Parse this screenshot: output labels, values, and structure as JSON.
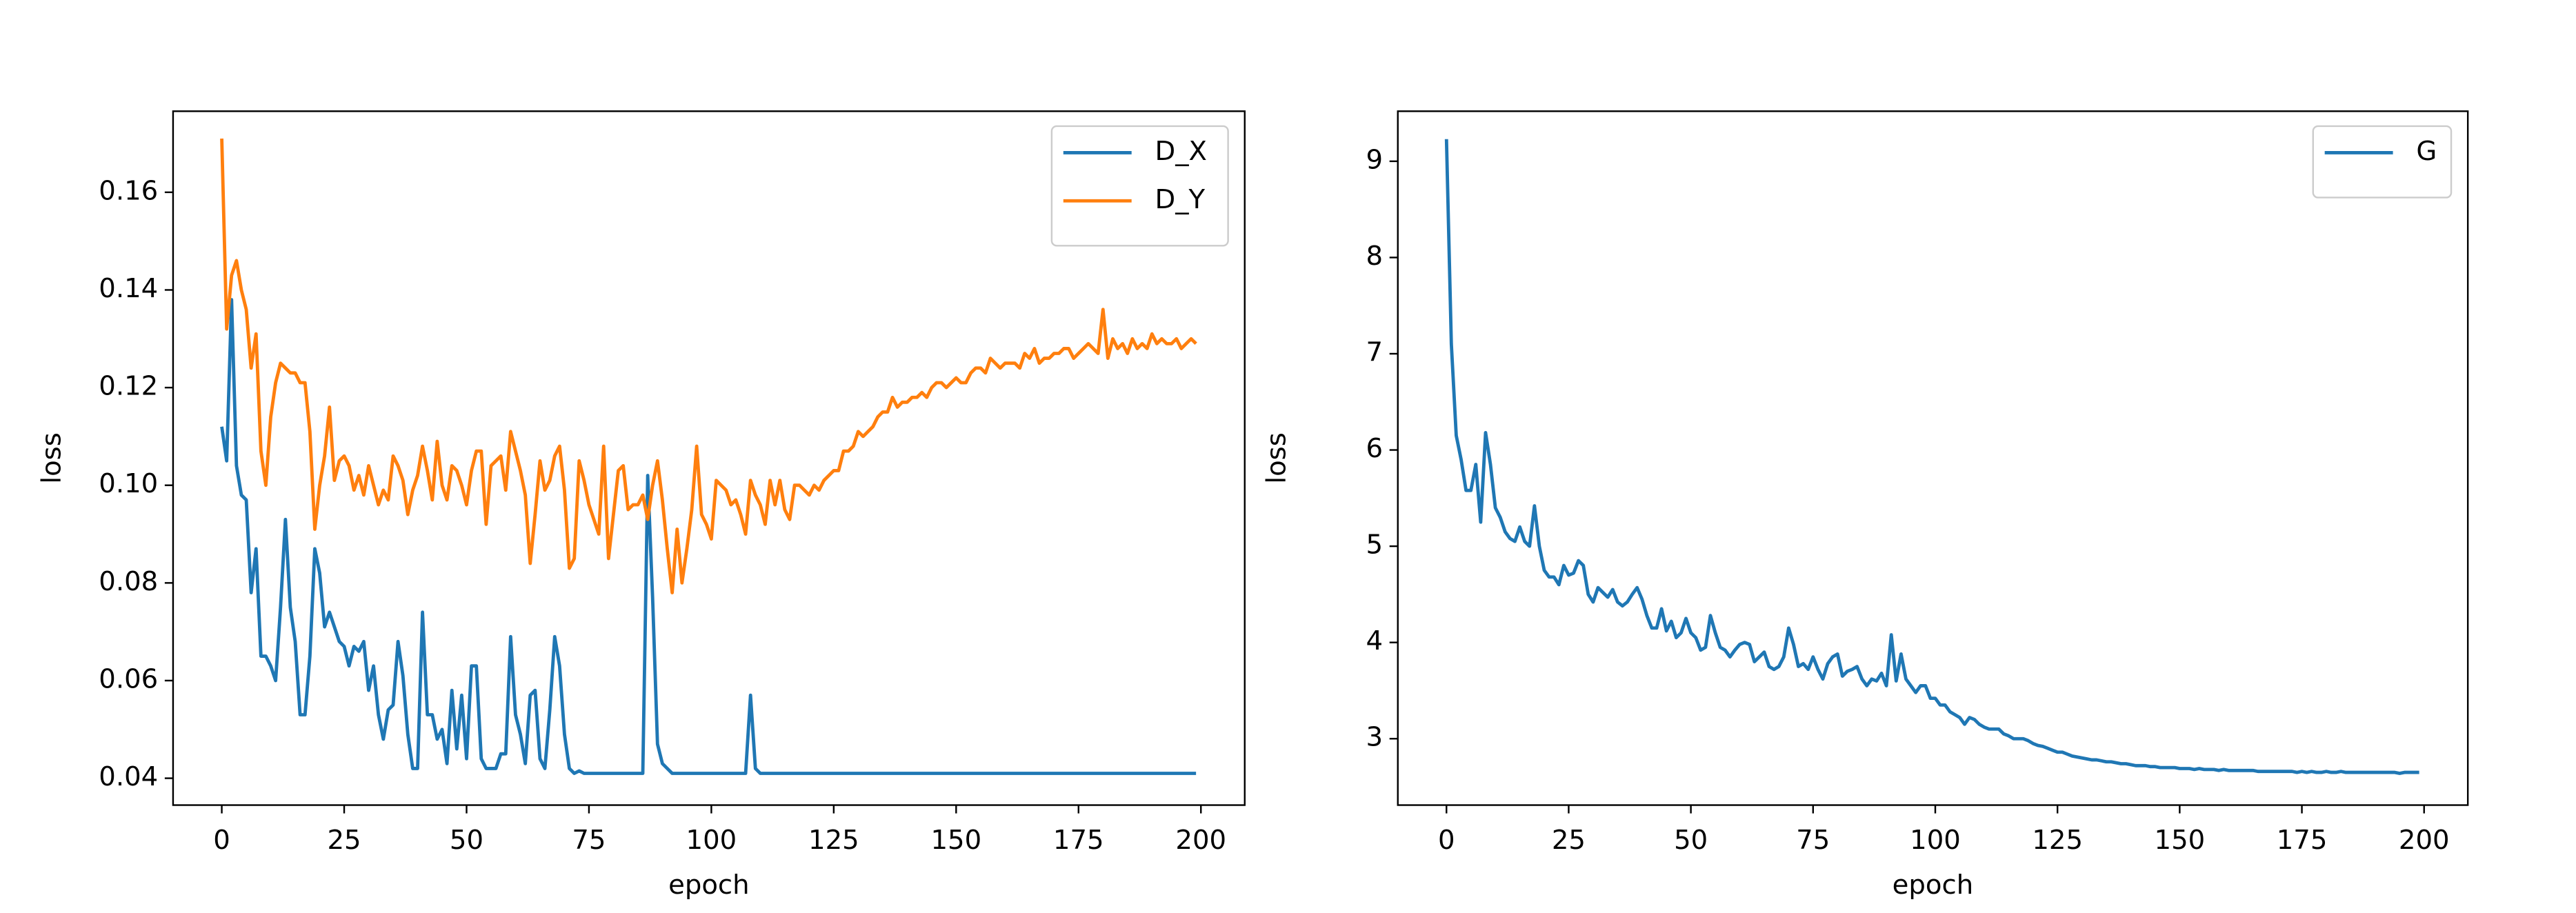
{
  "chart_data": [
    {
      "type": "line",
      "xlabel": "epoch",
      "ylabel": "loss",
      "legend": "upper right",
      "xlim": [
        -9.95,
        208.95
      ],
      "ylim": [
        0.0345,
        0.1766
      ],
      "xticks": [
        0,
        25,
        50,
        75,
        100,
        125,
        150,
        175,
        200
      ],
      "yticks": [
        0.04,
        0.06,
        0.08,
        {
          "value": 0.1,
          "label": "0.10"
        },
        0.12,
        0.14,
        0.16
      ],
      "x": [
        0,
        1,
        2,
        3,
        4,
        5,
        6,
        7,
        8,
        9,
        10,
        11,
        12,
        13,
        14,
        15,
        16,
        17,
        18,
        19,
        20,
        21,
        22,
        23,
        24,
        25,
        26,
        27,
        28,
        29,
        30,
        31,
        32,
        33,
        34,
        35,
        36,
        37,
        38,
        39,
        40,
        41,
        42,
        43,
        44,
        45,
        46,
        47,
        48,
        49,
        50,
        51,
        52,
        53,
        54,
        55,
        56,
        57,
        58,
        59,
        60,
        61,
        62,
        63,
        64,
        65,
        66,
        67,
        68,
        69,
        70,
        71,
        72,
        73,
        74,
        75,
        76,
        77,
        78,
        79,
        80,
        81,
        82,
        83,
        84,
        85,
        86,
        87,
        88,
        89,
        90,
        91,
        92,
        93,
        94,
        95,
        96,
        97,
        98,
        99,
        100,
        101,
        102,
        103,
        104,
        105,
        106,
        107,
        108,
        109,
        110,
        111,
        112,
        113,
        114,
        115,
        116,
        117,
        118,
        119,
        120,
        121,
        122,
        123,
        124,
        125,
        126,
        127,
        128,
        129,
        130,
        131,
        132,
        133,
        134,
        135,
        136,
        137,
        138,
        139,
        140,
        141,
        142,
        143,
        144,
        145,
        146,
        147,
        148,
        149,
        150,
        151,
        152,
        153,
        154,
        155,
        156,
        157,
        158,
        159,
        160,
        161,
        162,
        163,
        164,
        165,
        166,
        167,
        168,
        169,
        170,
        171,
        172,
        173,
        174,
        175,
        176,
        177,
        178,
        179,
        180,
        181,
        182,
        183,
        184,
        185,
        186,
        187,
        188,
        189,
        190,
        191,
        192,
        193,
        194,
        195,
        196,
        197,
        198,
        199
      ],
      "series": [
        {
          "name": "D_X",
          "color": "#1f77b4",
          "values": [
            0.112,
            0.105,
            0.138,
            0.104,
            0.098,
            0.097,
            0.078,
            0.087,
            0.065,
            0.065,
            0.063,
            0.06,
            0.075,
            0.093,
            0.075,
            0.068,
            0.053,
            0.053,
            0.065,
            0.087,
            0.082,
            0.071,
            0.074,
            0.071,
            0.068,
            0.067,
            0.063,
            0.067,
            0.066,
            0.068,
            0.058,
            0.063,
            0.053,
            0.048,
            0.054,
            0.055,
            0.068,
            0.061,
            0.049,
            0.042,
            0.042,
            0.074,
            0.053,
            0.053,
            0.048,
            0.05,
            0.043,
            0.058,
            0.046,
            0.057,
            0.044,
            0.063,
            0.063,
            0.044,
            0.042,
            0.042,
            0.042,
            0.045,
            0.045,
            0.069,
            0.053,
            0.049,
            0.043,
            0.057,
            0.058,
            0.044,
            0.042,
            0.054,
            0.069,
            0.063,
            0.049,
            0.042,
            0.041,
            0.0415,
            0.041,
            0.041,
            0.041,
            0.041,
            0.041,
            0.041,
            0.041,
            0.041,
            0.041,
            0.041,
            0.041,
            0.041,
            0.041,
            0.102,
            0.077,
            0.047,
            0.043,
            0.042,
            0.041,
            0.041,
            0.041,
            0.041,
            0.041,
            0.041,
            0.041,
            0.041,
            0.041,
            0.041,
            0.041,
            0.041,
            0.041,
            0.041,
            0.041,
            0.041,
            0.057,
            0.042,
            0.041,
            0.041,
            0.041,
            0.041,
            0.041,
            0.041,
            0.041,
            0.041,
            0.041,
            0.041,
            0.041,
            0.041,
            0.041,
            0.041,
            0.041,
            0.041,
            0.041,
            0.041,
            0.041,
            0.041,
            0.041,
            0.041,
            0.041,
            0.041,
            0.041,
            0.041,
            0.041,
            0.041,
            0.041,
            0.041,
            0.041,
            0.041,
            0.041,
            0.041,
            0.041,
            0.041,
            0.041,
            0.041,
            0.041,
            0.041,
            0.041,
            0.041,
            0.041,
            0.041,
            0.041,
            0.041,
            0.041,
            0.041,
            0.041,
            0.041,
            0.041,
            0.041,
            0.041,
            0.041,
            0.041,
            0.041,
            0.041,
            0.041,
            0.041,
            0.041,
            0.041,
            0.041,
            0.041,
            0.041,
            0.041,
            0.041,
            0.041,
            0.041,
            0.041,
            0.041,
            0.041,
            0.041,
            0.041,
            0.041,
            0.041,
            0.041,
            0.041,
            0.041,
            0.041,
            0.041,
            0.041,
            0.041,
            0.041,
            0.041,
            0.041,
            0.041,
            0.041,
            0.041,
            0.041,
            0.041
          ]
        },
        {
          "name": "D_Y",
          "color": "#ff7f0e",
          "values": [
            0.171,
            0.132,
            0.143,
            0.146,
            0.14,
            0.136,
            0.124,
            0.131,
            0.107,
            0.1,
            0.114,
            0.121,
            0.125,
            0.124,
            0.123,
            0.123,
            0.121,
            0.121,
            0.111,
            0.091,
            0.1,
            0.106,
            0.116,
            0.101,
            0.105,
            0.106,
            0.104,
            0.099,
            0.102,
            0.098,
            0.104,
            0.1,
            0.096,
            0.099,
            0.097,
            0.106,
            0.104,
            0.101,
            0.094,
            0.099,
            0.102,
            0.108,
            0.103,
            0.097,
            0.109,
            0.1,
            0.097,
            0.104,
            0.103,
            0.1,
            0.096,
            0.103,
            0.107,
            0.107,
            0.092,
            0.104,
            0.105,
            0.106,
            0.099,
            0.111,
            0.107,
            0.103,
            0.098,
            0.084,
            0.094,
            0.105,
            0.099,
            0.101,
            0.106,
            0.108,
            0.099,
            0.083,
            0.085,
            0.105,
            0.101,
            0.096,
            0.093,
            0.09,
            0.108,
            0.085,
            0.094,
            0.103,
            0.104,
            0.095,
            0.096,
            0.096,
            0.098,
            0.093,
            0.1,
            0.105,
            0.097,
            0.087,
            0.078,
            0.091,
            0.08,
            0.087,
            0.095,
            0.108,
            0.094,
            0.092,
            0.089,
            0.101,
            0.1,
            0.099,
            0.096,
            0.097,
            0.094,
            0.09,
            0.101,
            0.098,
            0.096,
            0.092,
            0.101,
            0.096,
            0.101,
            0.095,
            0.093,
            0.1,
            0.1,
            0.099,
            0.098,
            0.1,
            0.099,
            0.101,
            0.102,
            0.103,
            0.103,
            0.107,
            0.107,
            0.108,
            0.111,
            0.11,
            0.111,
            0.112,
            0.114,
            0.115,
            0.115,
            0.118,
            0.116,
            0.117,
            0.117,
            0.118,
            0.118,
            0.119,
            0.118,
            0.12,
            0.121,
            0.121,
            0.12,
            0.121,
            0.122,
            0.121,
            0.121,
            0.123,
            0.124,
            0.124,
            0.123,
            0.126,
            0.125,
            0.124,
            0.125,
            0.125,
            0.125,
            0.124,
            0.127,
            0.126,
            0.128,
            0.125,
            0.126,
            0.126,
            0.127,
            0.127,
            0.128,
            0.128,
            0.126,
            0.127,
            0.128,
            0.129,
            0.128,
            0.127,
            0.136,
            0.126,
            0.13,
            0.128,
            0.129,
            0.127,
            0.13,
            0.128,
            0.129,
            0.128,
            0.131,
            0.129,
            0.13,
            0.129,
            0.129,
            0.13,
            0.128,
            0.129,
            0.13,
            0.129
          ]
        }
      ]
    },
    {
      "type": "line",
      "xlabel": "epoch",
      "ylabel": "loss",
      "legend": "upper right",
      "xlim": [
        -9.95,
        208.95
      ],
      "ylim": [
        2.31,
        9.52
      ],
      "xticks": [
        0,
        25,
        50,
        75,
        100,
        125,
        150,
        175,
        200
      ],
      "yticks": [
        3,
        4,
        5,
        6,
        7,
        8,
        9
      ],
      "x": [
        0,
        1,
        2,
        3,
        4,
        5,
        6,
        7,
        8,
        9,
        10,
        11,
        12,
        13,
        14,
        15,
        16,
        17,
        18,
        19,
        20,
        21,
        22,
        23,
        24,
        25,
        26,
        27,
        28,
        29,
        30,
        31,
        32,
        33,
        34,
        35,
        36,
        37,
        38,
        39,
        40,
        41,
        42,
        43,
        44,
        45,
        46,
        47,
        48,
        49,
        50,
        51,
        52,
        53,
        54,
        55,
        56,
        57,
        58,
        59,
        60,
        61,
        62,
        63,
        64,
        65,
        66,
        67,
        68,
        69,
        70,
        71,
        72,
        73,
        74,
        75,
        76,
        77,
        78,
        79,
        80,
        81,
        82,
        83,
        84,
        85,
        86,
        87,
        88,
        89,
        90,
        91,
        92,
        93,
        94,
        95,
        96,
        97,
        98,
        99,
        100,
        101,
        102,
        103,
        104,
        105,
        106,
        107,
        108,
        109,
        110,
        111,
        112,
        113,
        114,
        115,
        116,
        117,
        118,
        119,
        120,
        121,
        122,
        123,
        124,
        125,
        126,
        127,
        128,
        129,
        130,
        131,
        132,
        133,
        134,
        135,
        136,
        137,
        138,
        139,
        140,
        141,
        142,
        143,
        144,
        145,
        146,
        147,
        148,
        149,
        150,
        151,
        152,
        153,
        154,
        155,
        156,
        157,
        158,
        159,
        160,
        161,
        162,
        163,
        164,
        165,
        166,
        167,
        168,
        169,
        170,
        171,
        172,
        173,
        174,
        175,
        176,
        177,
        178,
        179,
        180,
        181,
        182,
        183,
        184,
        185,
        186,
        187,
        188,
        189,
        190,
        191,
        192,
        193,
        194,
        195,
        196,
        197,
        198,
        199
      ],
      "series": [
        {
          "name": "G",
          "color": "#1f77b4",
          "values": [
            9.23,
            7.1,
            6.15,
            5.9,
            5.58,
            5.58,
            5.85,
            5.25,
            6.18,
            5.85,
            5.4,
            5.3,
            5.15,
            5.08,
            5.05,
            5.2,
            5.05,
            5.0,
            5.42,
            5.0,
            4.75,
            4.68,
            4.68,
            4.6,
            4.8,
            4.7,
            4.72,
            4.85,
            4.8,
            4.5,
            4.42,
            4.57,
            4.52,
            4.47,
            4.55,
            4.42,
            4.38,
            4.42,
            4.5,
            4.57,
            4.45,
            4.28,
            4.15,
            4.15,
            4.35,
            4.12,
            4.22,
            4.05,
            4.1,
            4.25,
            4.1,
            4.05,
            3.92,
            3.95,
            4.28,
            4.1,
            3.95,
            3.92,
            3.85,
            3.92,
            3.98,
            4.0,
            3.98,
            3.8,
            3.85,
            3.9,
            3.75,
            3.72,
            3.75,
            3.85,
            4.15,
            3.98,
            3.75,
            3.78,
            3.72,
            3.85,
            3.72,
            3.62,
            3.78,
            3.85,
            3.88,
            3.65,
            3.7,
            3.72,
            3.75,
            3.62,
            3.55,
            3.62,
            3.6,
            3.68,
            3.55,
            4.08,
            3.6,
            3.88,
            3.62,
            3.55,
            3.48,
            3.55,
            3.55,
            3.42,
            3.42,
            3.35,
            3.35,
            3.28,
            3.25,
            3.22,
            3.15,
            3.22,
            3.2,
            3.15,
            3.12,
            3.1,
            3.1,
            3.1,
            3.05,
            3.03,
            3.0,
            3.0,
            3.0,
            2.98,
            2.95,
            2.93,
            2.92,
            2.9,
            2.88,
            2.86,
            2.86,
            2.84,
            2.82,
            2.81,
            2.8,
            2.79,
            2.78,
            2.78,
            2.77,
            2.76,
            2.76,
            2.75,
            2.74,
            2.74,
            2.73,
            2.72,
            2.72,
            2.72,
            2.71,
            2.71,
            2.7,
            2.7,
            2.7,
            2.7,
            2.69,
            2.69,
            2.69,
            2.68,
            2.69,
            2.68,
            2.68,
            2.68,
            2.67,
            2.68,
            2.67,
            2.67,
            2.67,
            2.67,
            2.67,
            2.67,
            2.66,
            2.66,
            2.66,
            2.66,
            2.66,
            2.66,
            2.66,
            2.66,
            2.65,
            2.66,
            2.65,
            2.66,
            2.65,
            2.65,
            2.66,
            2.65,
            2.65,
            2.66,
            2.65,
            2.65,
            2.65,
            2.65,
            2.65,
            2.65,
            2.65,
            2.65,
            2.65,
            2.65,
            2.65,
            2.64,
            2.65,
            2.65,
            2.65,
            2.65
          ]
        }
      ]
    }
  ]
}
